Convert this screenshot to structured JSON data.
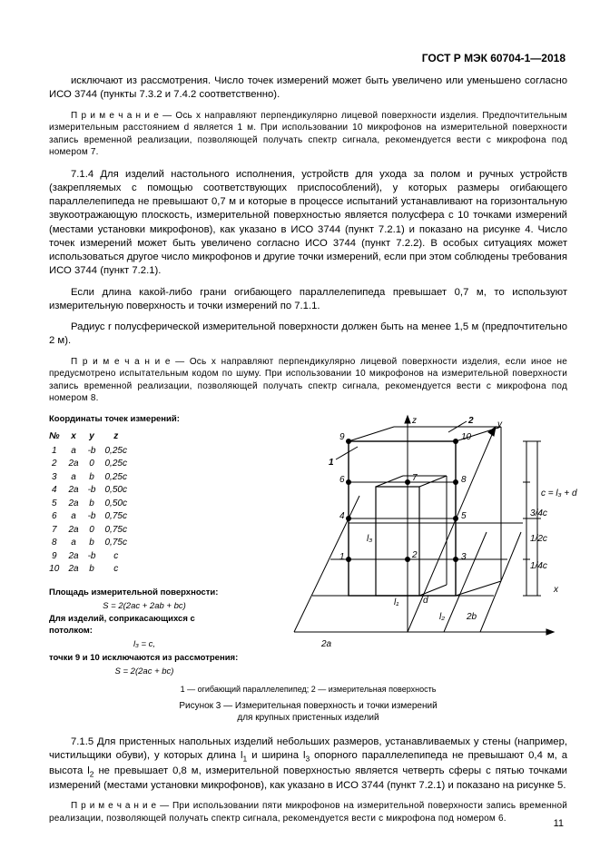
{
  "standard_code": "ГОСТ Р МЭК 60704-1—2018",
  "p1": "исключают из рассмотрения. Число точек измерений может быть увеличено или уменьшено согласно ИСО 3744 (пункты 7.3.2 и 7.4.2 соответственно).",
  "note1_lead": "П р и м е ч а н и е",
  "note1": " — Ось x направляют перпендикулярно лицевой поверхности изделия. Предпочтительным измерительным расстоянием d является 1 м. При использовании 10 микрофонов на измерительной поверхности запись временной реализации, позволяющей получать спектр сигнала, рекомендуется вести с микрофона под номером 7.",
  "p2": "7.1.4 Для изделий настольного исполнения, устройств для ухода за полом и ручных устройств (закрепляемых с помощью соответствующих приспособлений), у которых размеры огибающего параллелепипеда не превышают 0,7 м и которые в процессе испытаний устанавливают на горизонтальную звукоотражающую плоскость, измерительной поверхностью является полусфера с 10 точками измерений (местами установки микрофонов), как указано в ИСО 3744 (пункт 7.2.1) и показано на рисунке 4. Число точек измерений может быть увеличено согласно ИСО 3744 (пункт 7.2.2). В особых ситуациях может использоваться другое число микрофонов и другие точки измерений, если при этом соблюдены требования ИСО 3744 (пункт 7.2.1).",
  "p3": "Если длина какой-либо грани огибающего параллелепипеда превышает 0,7 м, то используют измерительную поверхность и точки измерений по 7.1.1.",
  "p4": "Радиус r полусферической измерительной поверхности должен быть на менее 1,5 м (предпочтительно 2 м).",
  "note2_lead": "П р и м е ч а н и е",
  "note2": " — Ось x направляют перпендикулярно лицевой поверхности изделия, если иное не предусмотрено испытательным кодом по шуму. При использовании 10 микрофонов на измерительной поверхности запись временной реализации, позволяющей получать спектр сигнала, рекомендуется вести с микрофона под номером 8.",
  "table_header": "Координаты точек измерений:",
  "table": {
    "cols": [
      "№",
      "x",
      "y",
      "z"
    ],
    "rows": [
      [
        "1",
        "a",
        "-b",
        "0,25c"
      ],
      [
        "2",
        "2a",
        "0",
        "0,25c"
      ],
      [
        "3",
        "a",
        "b",
        "0,25c"
      ],
      [
        "4",
        "2a",
        "-b",
        "0,50c"
      ],
      [
        "5",
        "2a",
        "b",
        "0,50c"
      ],
      [
        "6",
        "a",
        "-b",
        "0,75c"
      ],
      [
        "7",
        "2a",
        "0",
        "0,75c"
      ],
      [
        "8",
        "a",
        "b",
        "0,75c"
      ],
      [
        "9",
        "2a",
        "-b",
        "c"
      ],
      [
        "10",
        "2a",
        "b",
        "c"
      ]
    ]
  },
  "formula1_label": "Площадь измерительной поверхности:",
  "formula1": "S = 2(2ac + 2ab + bc)",
  "formula2_label": "Для изделий, соприкасающихся с потолком:",
  "formula2a": "l₃ = c,",
  "formula2b_label": "точки 9 и 10 исключаются из рассмотрения:",
  "formula2b": "S = 2(2ac + bc)",
  "diagram": {
    "axis_z": "z",
    "axis_y": "y",
    "axis_x": "x",
    "lbl_1": "1",
    "lbl_2": "2",
    "lbl_d": "d",
    "lbl_l1": "l₁",
    "lbl_l2": "l₂",
    "lbl_l3": "l₃",
    "lbl_2a": "2a",
    "lbl_2b": "2b",
    "lbl_c_eq": "c = l₃ + d",
    "lbl_34c": "3/4c",
    "lbl_12c": "1/2c",
    "lbl_14c": "1/4c",
    "pt9": "9",
    "pt10": "10",
    "pt6": "6",
    "pt7": "7",
    "pt8": "8",
    "pt4": "4",
    "pt5": "5",
    "pt1": "1",
    "pt2": "2",
    "pt3": "3",
    "stroke": "#000000",
    "fill": "#000000"
  },
  "figlegend": "1 — огибающий параллелепипед; 2 — измерительная поверхность",
  "figcap1": "Рисунок 3 — Измерительная поверхность и точки измерений",
  "figcap2": "для крупных пристенных изделий",
  "p5a": "7.1.5 Для пристенных напольных изделий небольших размеров, устанавливаемых у стены (например, чистильщики обуви), у которых длина l",
  "p5b": " и ширина l",
  "p5c": " опорного параллелепипеда не превышают 0,4 м, а высота l",
  "p5d": " не превышает 0,8 м, измерительной поверхностью является четверть сферы с пятью точками измерений (местами установки микрофонов), как указано в ИСО 3744 (пункт 7.2.1) и показано на рисунке 5.",
  "note3_lead": "П р и м е ч а н и е",
  "note3": " — При использовании пяти микрофонов на измерительной поверхности запись временной реализации, позволяющей получать спектр сигнала, рекомендуется вести с микрофона под номером 6.",
  "pagenum": "11"
}
